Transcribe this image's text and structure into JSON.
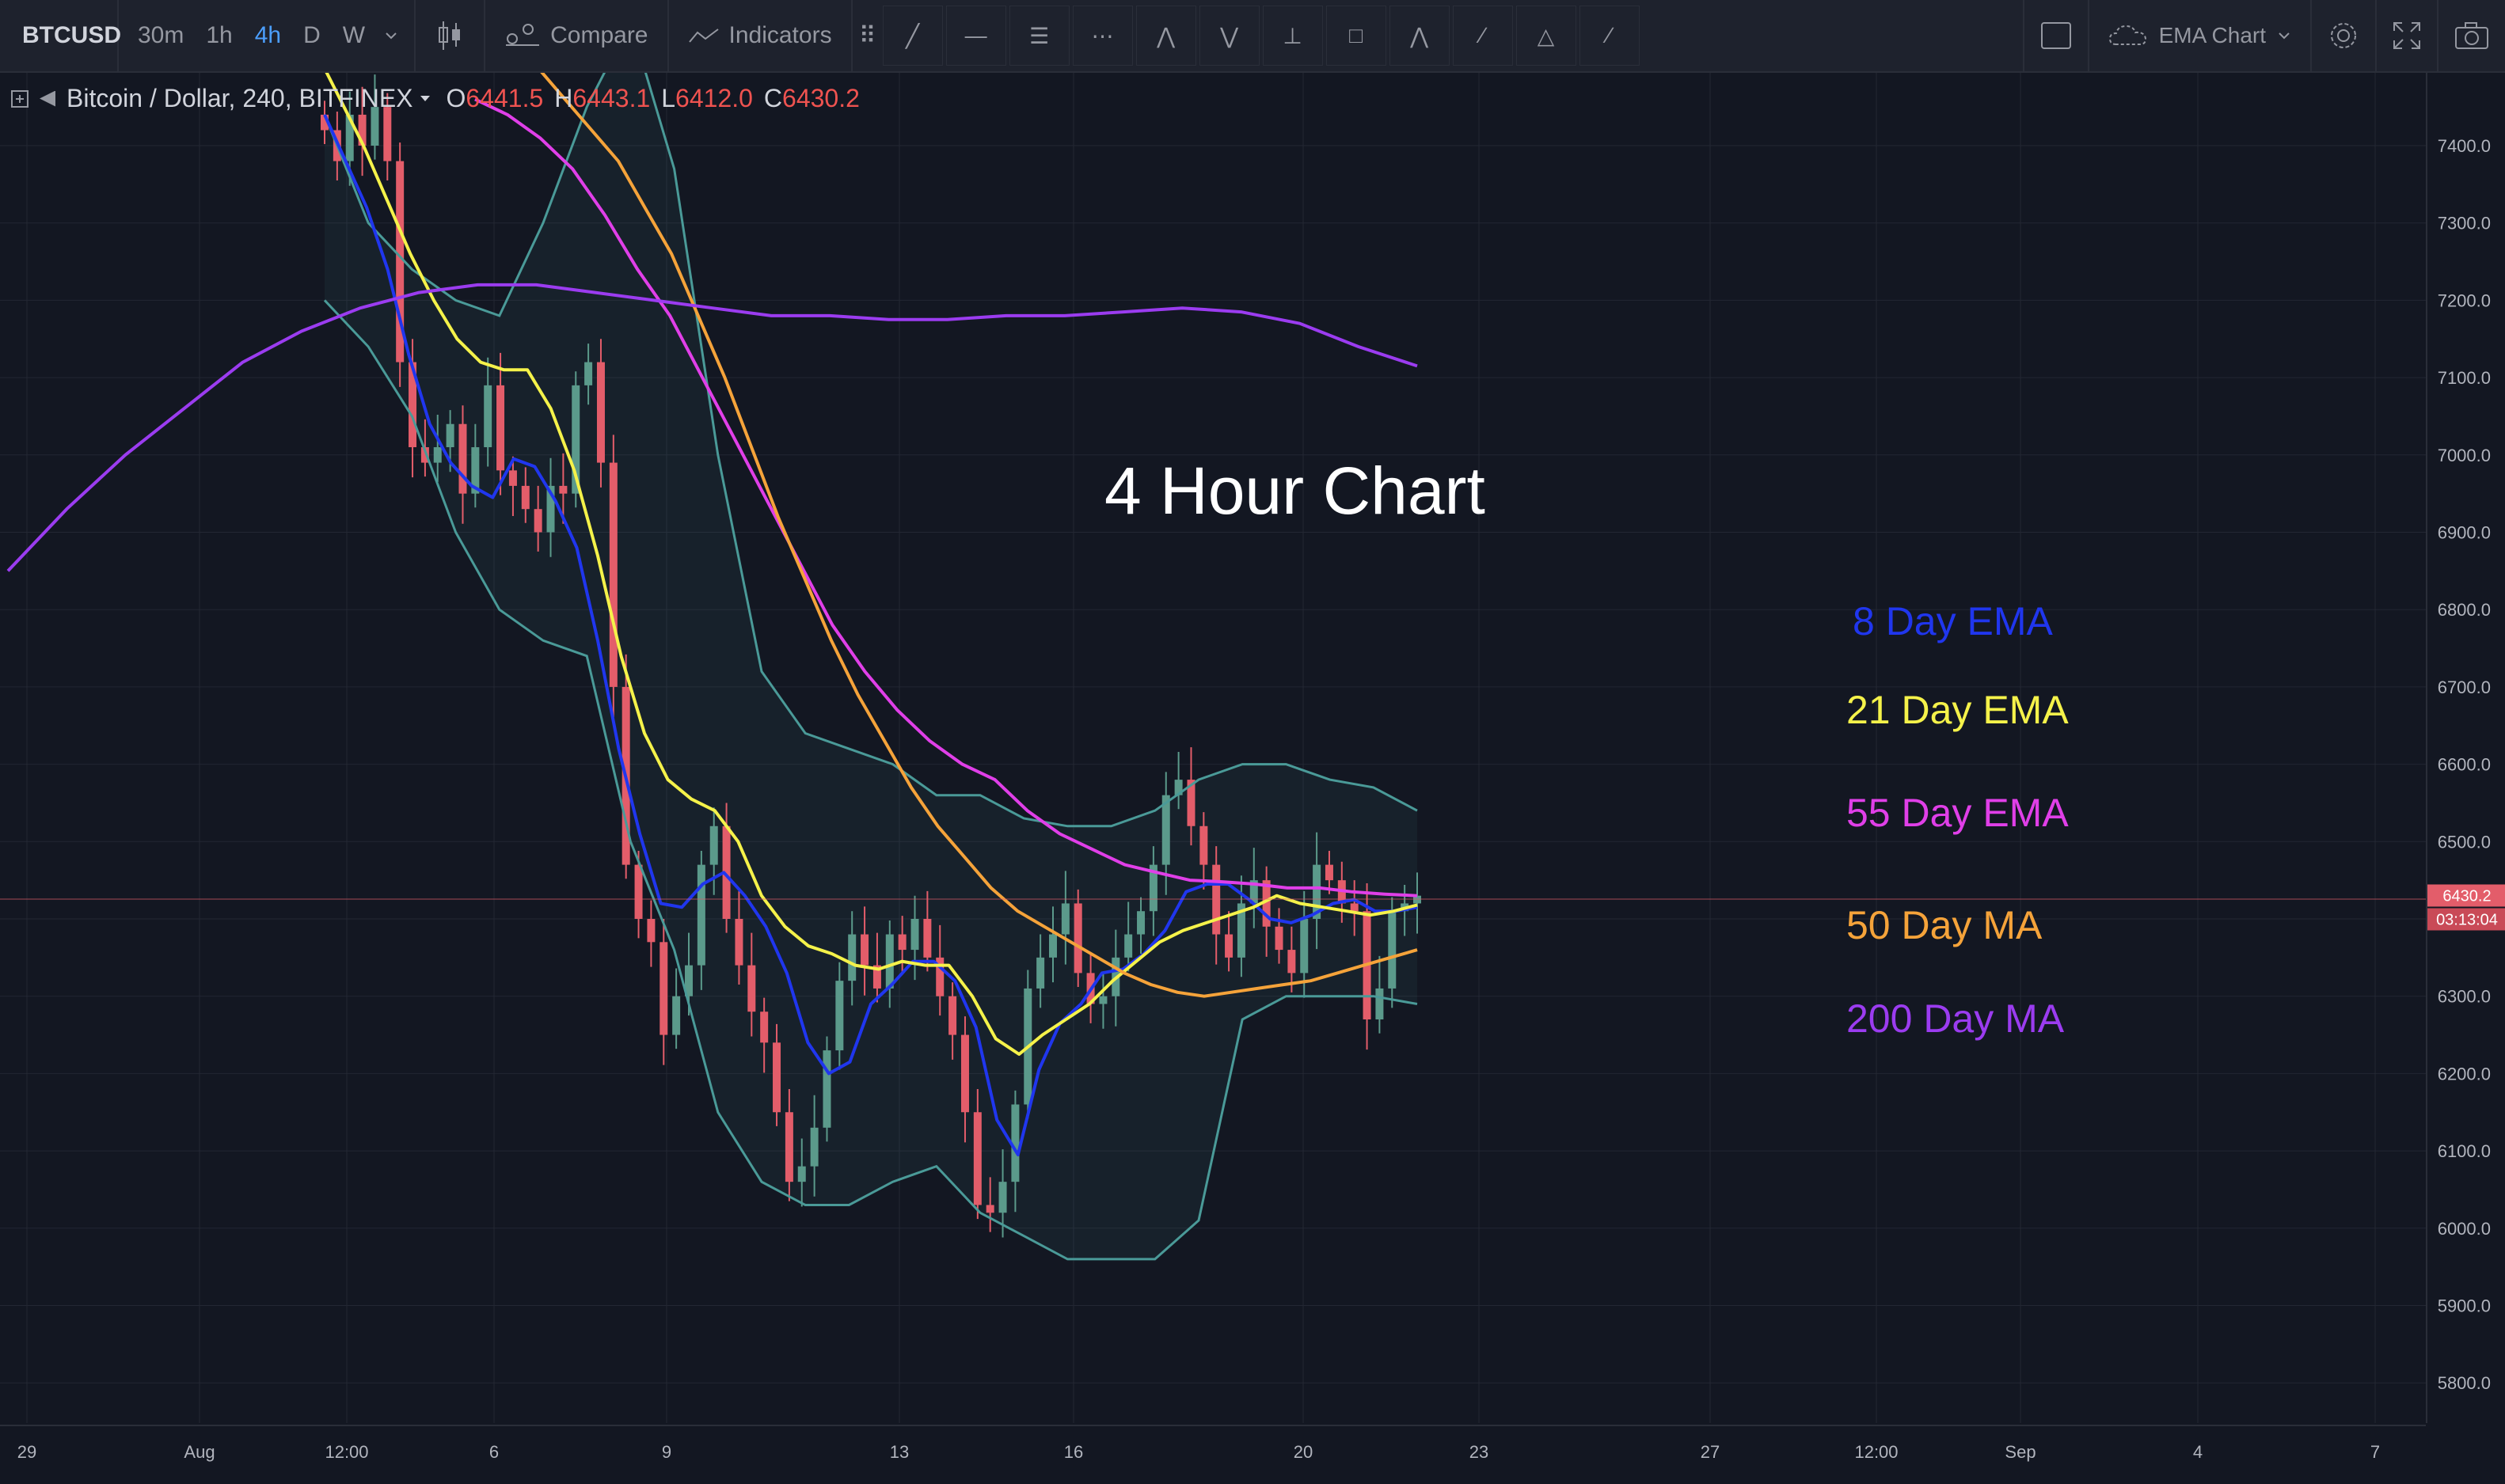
{
  "toolbar": {
    "symbol": "BTCUSD",
    "intervals": [
      "30m",
      "1h",
      "4h",
      "D",
      "W"
    ],
    "active_interval": "4h",
    "compare_label": "Compare",
    "indicators_label": "Indicators",
    "drawing_tools": [
      "trend-line-icon",
      "horizontal-line-icon",
      "parallel-channel-icon",
      "fib-retracement-icon",
      "pattern-123-icon",
      "elliott-wave-icon",
      "vertical-measure-icon",
      "rectangle-icon",
      "abc-pattern-icon",
      "brush-icon",
      "triangle-icon",
      "path-icon"
    ],
    "chart_layout_label": "EMA Chart",
    "icons": [
      "fullscreen-toggle-icon",
      "cloud-icon",
      "gear-icon",
      "expand-icon",
      "camera-icon"
    ]
  },
  "legend": {
    "title": "Bitcoin / Dollar, 240, BITFINEX",
    "o_label": "O",
    "o_value": "6441.5",
    "h_label": "H",
    "h_value": "6443.1",
    "l_label": "L",
    "l_value": "6412.0",
    "c_label": "C",
    "c_value": "6430.2"
  },
  "overlay_title": "4 Hour Chart",
  "annotations": [
    {
      "text": "8 Day EMA",
      "color": "#2036ee"
    },
    {
      "text": "21 Day EMA",
      "color": "#f5f24a"
    },
    {
      "text": "55 Day EMA",
      "color": "#e03fe8"
    },
    {
      "text": "50 Day MA",
      "color": "#f5a33a"
    },
    {
      "text": "200 Day MA",
      "color": "#9b3cf0"
    }
  ],
  "colors": {
    "bg": "#131722",
    "grid": "#232733",
    "up": "#5b9a8b",
    "down": "#e35d6a",
    "bb": "#4a9a98",
    "ema8": "#2036ee",
    "ema21": "#f5f24a",
    "ema55": "#e03fe8",
    "ma50": "#f5a33a",
    "ma200": "#9b3cf0"
  },
  "price_axis": {
    "ticks": [
      "7400.0",
      "7300.0",
      "7200.0",
      "7100.0",
      "7000.0",
      "6900.0",
      "6800.0",
      "6700.0",
      "6600.0",
      "6500.0",
      "6400.0",
      "6300.0",
      "6200.0",
      "6100.0",
      "6000.0",
      "5900.0",
      "5800.0"
    ],
    "last_price": "6430.2",
    "countdown": "03:13:04"
  },
  "time_axis": {
    "ticks": [
      "29",
      "Aug",
      "12:00",
      "6",
      "9",
      "13",
      "16",
      "20",
      "23",
      "27",
      "12:00",
      "Sep",
      "4",
      "7"
    ]
  },
  "chart_data": {
    "type": "candlestick",
    "title": "4 Hour Chart",
    "ylim": [
      5770,
      7480
    ],
    "series": [
      {
        "name": "8 Day EMA",
        "values": [
          7440,
          7380,
          7320,
          7240,
          7130,
          7040,
          6990,
          6960,
          6945,
          6995,
          6985,
          6940,
          6880,
          6760,
          6620,
          6510,
          6420,
          6415,
          6445,
          6460,
          6430,
          6390,
          6330,
          6240,
          6200,
          6215,
          6290,
          6315,
          6345,
          6345,
          6320,
          6260,
          6140,
          6095,
          6205,
          6265,
          6290,
          6330,
          6335,
          6355,
          6385,
          6435,
          6445,
          6445,
          6425,
          6400,
          6395,
          6405,
          6420,
          6425,
          6410,
          6410,
          6415
        ]
      },
      {
        "name": "21 Day EMA",
        "values": [
          7520,
          7460,
          7400,
          7330,
          7260,
          7200,
          7150,
          7120,
          7110,
          7110,
          7060,
          6980,
          6870,
          6740,
          6640,
          6580,
          6555,
          6540,
          6500,
          6430,
          6390,
          6365,
          6355,
          6340,
          6335,
          6345,
          6340,
          6340,
          6300,
          6245,
          6225,
          6250,
          6270,
          6290,
          6320,
          6345,
          6370,
          6385,
          6395,
          6405,
          6415,
          6430,
          6420,
          6415,
          6410,
          6405,
          6410,
          6418
        ]
      },
      {
        "name": "55 Day EMA",
        "values": [
          7460,
          7440,
          7410,
          7370,
          7310,
          7240,
          7180,
          7100,
          7020,
          6940,
          6860,
          6780,
          6720,
          6670,
          6630,
          6600,
          6580,
          6540,
          6510,
          6490,
          6470,
          6460,
          6450,
          6448,
          6445,
          6440,
          6440,
          6435,
          6432,
          6430
        ]
      },
      {
        "name": "50 Day MA",
        "values": [
          7500,
          7460,
          7420,
          7380,
          7320,
          7260,
          7180,
          7100,
          7010,
          6920,
          6840,
          6760,
          6690,
          6630,
          6570,
          6520,
          6480,
          6440,
          6410,
          6390,
          6370,
          6350,
          6330,
          6315,
          6305,
          6300,
          6305,
          6310,
          6315,
          6320,
          6330,
          6340,
          6350,
          6360
        ]
      },
      {
        "name": "200 Day MA",
        "values": [
          6850,
          6930,
          7000,
          7060,
          7120,
          7160,
          7190,
          7210,
          7220,
          7220,
          7210,
          7200,
          7190,
          7180,
          7180,
          7175,
          7175,
          7180,
          7180,
          7185,
          7190,
          7185,
          7170,
          7140,
          7115
        ]
      }
    ]
  }
}
